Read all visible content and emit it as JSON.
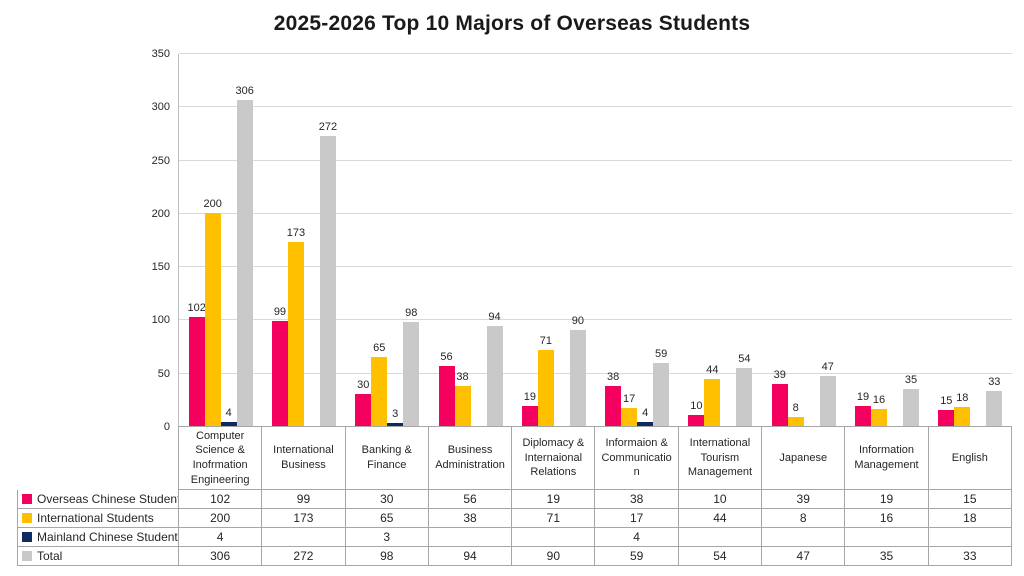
{
  "title": "2025-2026 Top 10 Majors of Overseas Students",
  "colors": {
    "overseas_chinese": "#F4005F",
    "international": "#FFC000",
    "mainland_chinese": "#0D2A63",
    "total": "#C9C9C9",
    "gridline": "#D9D9D9",
    "table_border": "#A6A6A6"
  },
  "chart_data": {
    "type": "bar",
    "title": "2025-2026 Top 10 Majors of Overseas Students",
    "categories": [
      "Computer Science & Inofrmation Engineering",
      "International Business",
      "Banking & Finance",
      "Business Administration",
      "Diplomacy & Internaional Relations",
      "Informaion & Communication",
      "International Tourism Management",
      "Japanese",
      "Information Management",
      "English"
    ],
    "series": [
      {
        "name": "Overseas Chinese Students",
        "color": "#F4005F",
        "values": [
          102,
          99,
          30,
          56,
          19,
          38,
          10,
          39,
          19,
          15
        ]
      },
      {
        "name": "International Students",
        "color": "#FFC000",
        "values": [
          200,
          173,
          65,
          38,
          71,
          17,
          44,
          8,
          16,
          18
        ]
      },
      {
        "name": "Mainland Chinese Students",
        "color": "#0D2A63",
        "values": [
          4,
          null,
          3,
          null,
          null,
          4,
          null,
          null,
          null,
          null
        ]
      },
      {
        "name": "Total",
        "color": "#C9C9C9",
        "values": [
          306,
          272,
          98,
          94,
          90,
          59,
          54,
          47,
          35,
          33
        ]
      }
    ],
    "xlabel": "",
    "ylabel": "",
    "ylim": [
      0,
      350
    ],
    "yticks": [
      0,
      50,
      100,
      150,
      200,
      250,
      300,
      350
    ],
    "grid": true,
    "data_labels": true,
    "legend_position": "bottom-table"
  }
}
